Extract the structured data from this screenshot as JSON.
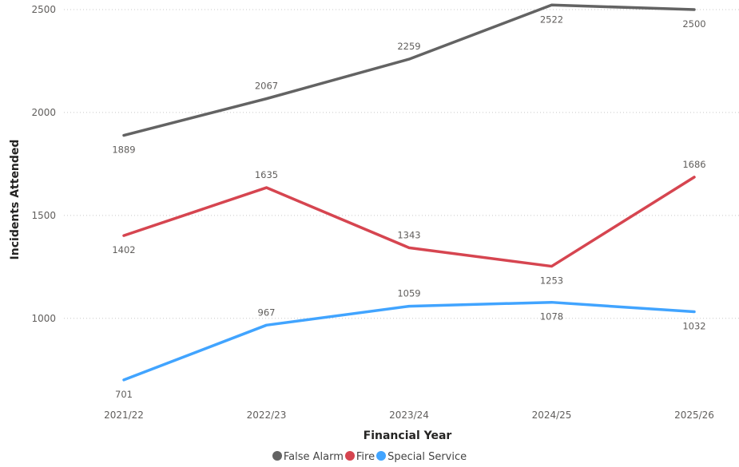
{
  "chart_data": {
    "type": "line",
    "xlabel": "Financial Year",
    "ylabel": "Incidents Attended",
    "categories": [
      "2021/22",
      "2022/23",
      "2023/24",
      "2024/25",
      "2025/26"
    ],
    "ylim": [
      627,
      2527
    ],
    "yticks": [
      1000,
      1500,
      2000,
      2500
    ],
    "grid": true,
    "legend_position": "bottom",
    "series": [
      {
        "name": "False Alarm",
        "color": "#636363",
        "values": [
          1889,
          2067,
          2259,
          2522,
          2500
        ],
        "label_pos": [
          "below",
          "above",
          "above",
          "below",
          "below"
        ]
      },
      {
        "name": "Fire",
        "color": "#d64550",
        "values": [
          1402,
          1635,
          1343,
          1253,
          1686
        ],
        "label_pos": [
          "below",
          "above",
          "above",
          "below",
          "above"
        ]
      },
      {
        "name": "Special Service",
        "color": "#41a4ff",
        "values": [
          701,
          967,
          1059,
          1078,
          1032
        ],
        "label_pos": [
          "below",
          "above",
          "above",
          "below",
          "below"
        ]
      }
    ]
  }
}
